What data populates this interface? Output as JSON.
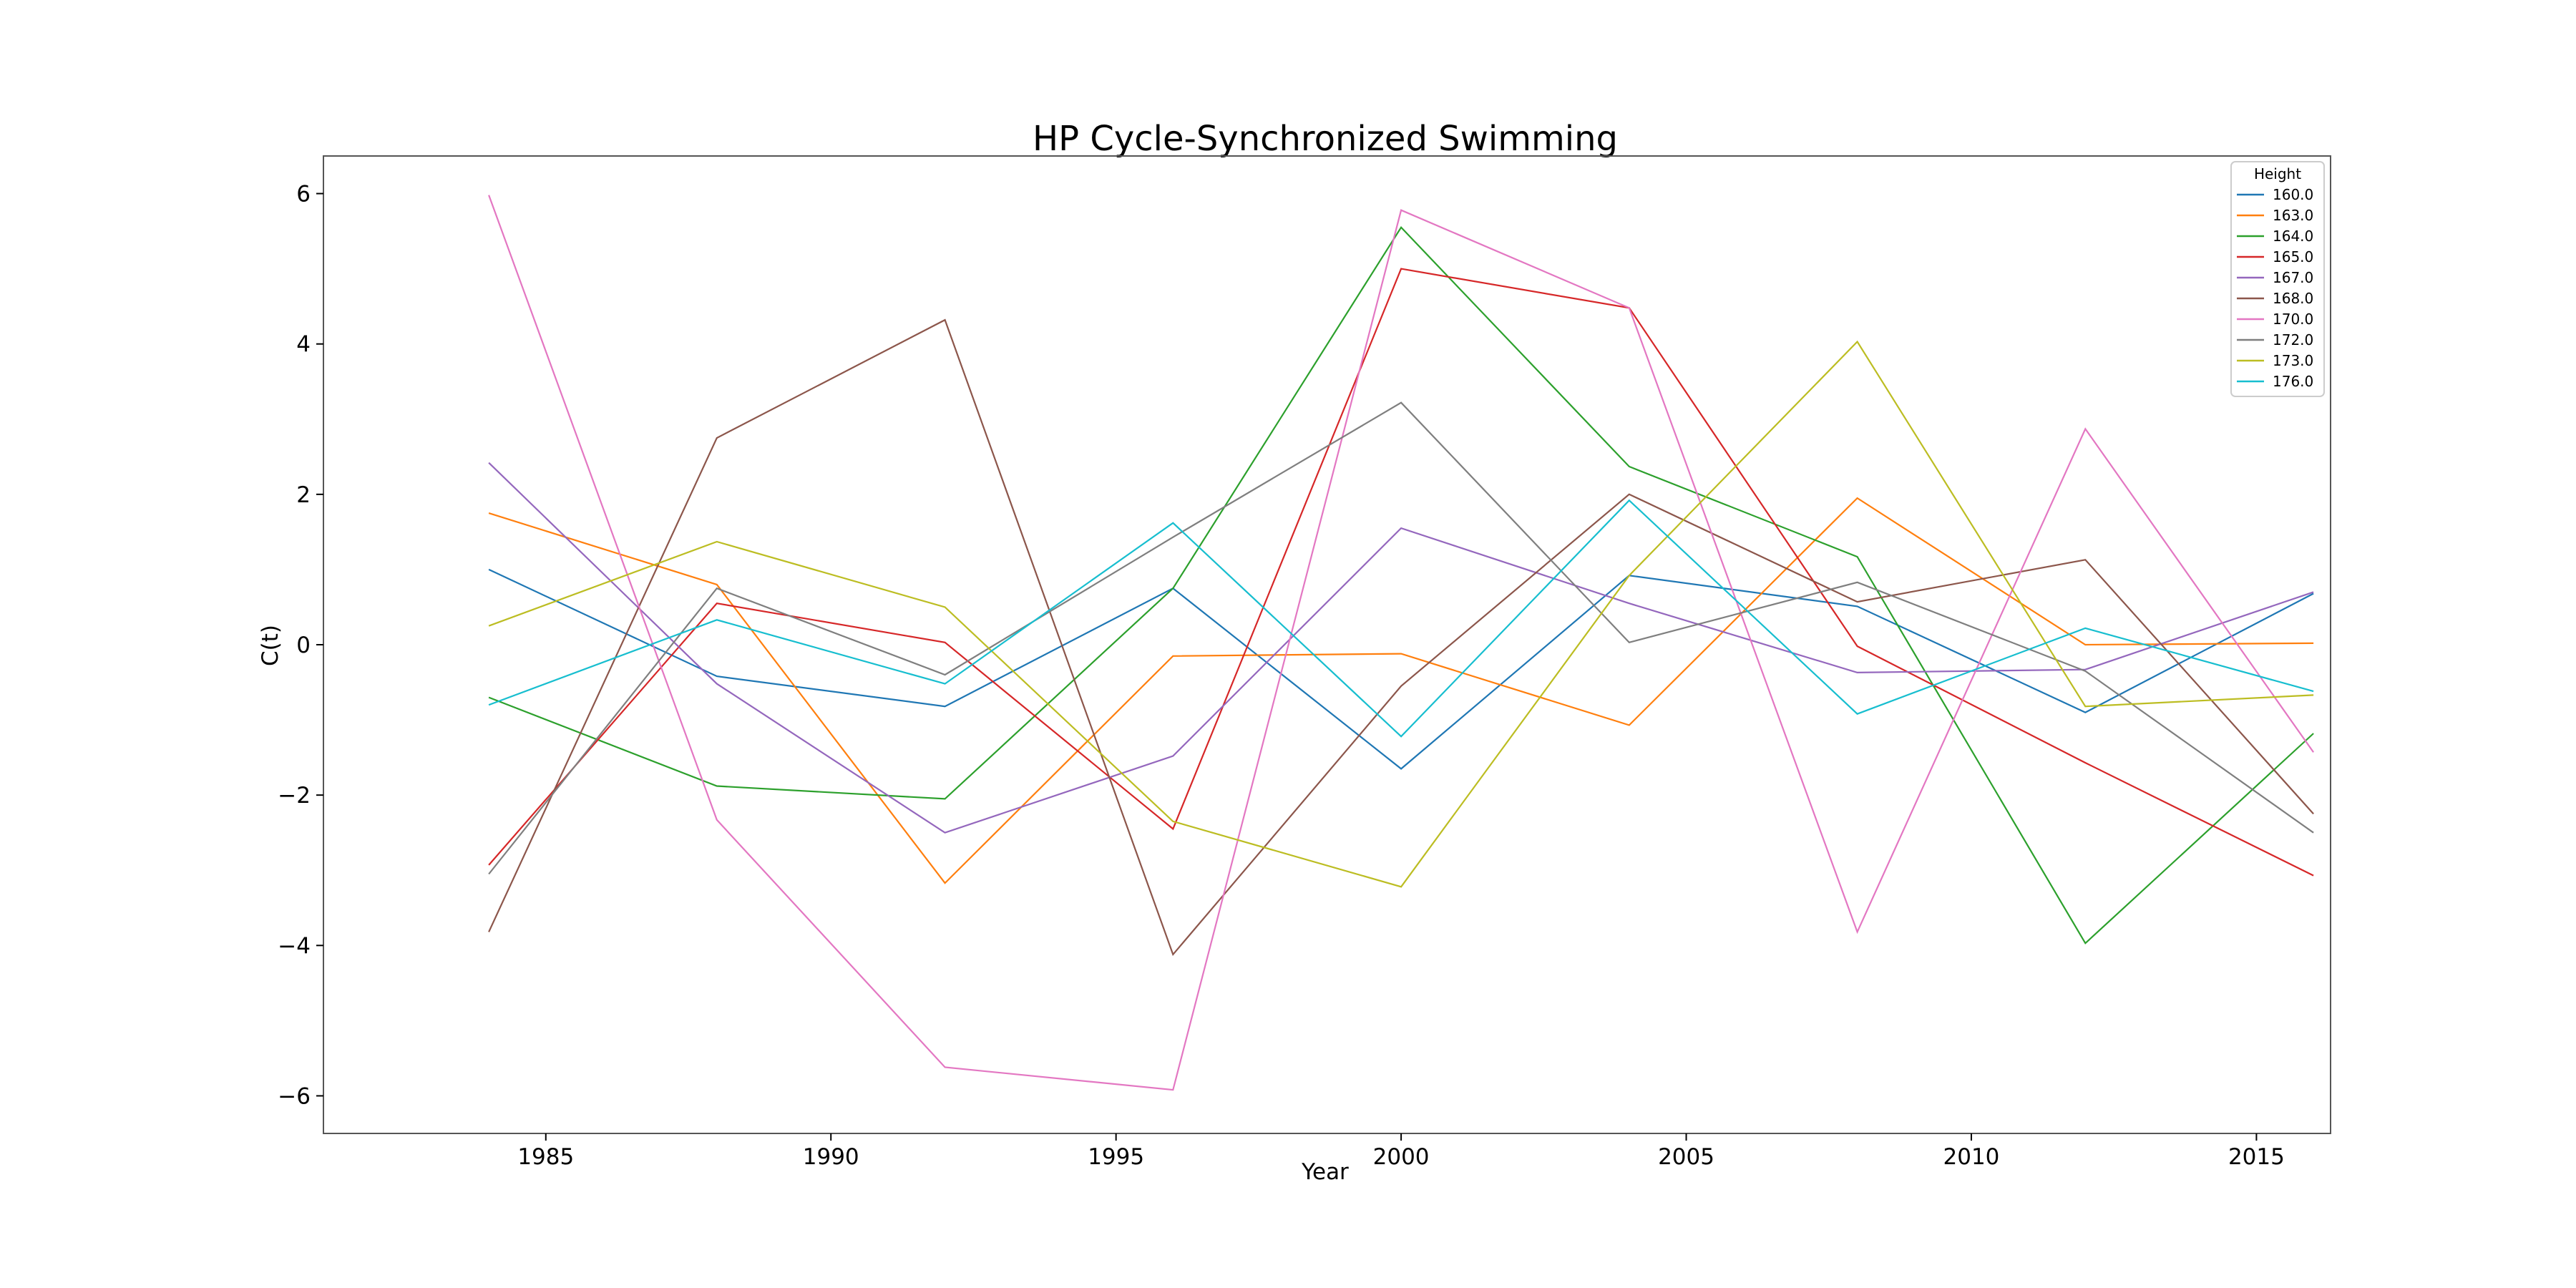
{
  "chart_data": {
    "type": "line",
    "title": "HP Cycle-Synchronized Swimming",
    "xlabel": "Year",
    "ylabel": "C(t)",
    "x": [
      1984,
      1988,
      1992,
      1996,
      2000,
      2004,
      2008,
      2012,
      2016
    ],
    "xlim": [
      1981.1,
      2016.3
    ],
    "ylim": [
      -6.5,
      6.5
    ],
    "xticks": [
      "1985",
      "1990",
      "1995",
      "2000",
      "2005",
      "2010",
      "2015"
    ],
    "yticks": [
      "6",
      "4",
      "2",
      "0",
      "−2",
      "−4",
      "−6"
    ],
    "grid": false,
    "legend": {
      "title": "Height",
      "position": "top-right"
    },
    "series": [
      {
        "name": "160.0",
        "color": "#1f77b4",
        "values": [
          1.0,
          -0.42,
          -0.82,
          0.75,
          -1.65,
          0.92,
          0.51,
          -0.9,
          0.68
        ]
      },
      {
        "name": "163.0",
        "color": "#ff7f0e",
        "values": [
          1.75,
          0.8,
          -3.17,
          -0.15,
          -0.12,
          -1.07,
          1.95,
          0.0,
          0.02
        ]
      },
      {
        "name": "164.0",
        "color": "#2ca02c",
        "values": [
          -0.7,
          -1.88,
          -2.05,
          0.75,
          5.55,
          2.37,
          1.17,
          -3.97,
          -1.18
        ]
      },
      {
        "name": "165.0",
        "color": "#d62728",
        "values": [
          -2.93,
          0.55,
          0.03,
          -2.45,
          5.0,
          4.48,
          -0.02,
          -1.57,
          -3.07
        ]
      },
      {
        "name": "167.0",
        "color": "#9467bd",
        "values": [
          2.42,
          -0.52,
          -2.5,
          -1.48,
          1.55,
          0.55,
          -0.37,
          -0.33,
          0.7
        ]
      },
      {
        "name": "168.0",
        "color": "#8c564b",
        "values": [
          -3.82,
          2.75,
          4.32,
          -4.12,
          -0.55,
          2.0,
          0.57,
          1.13,
          -2.25
        ]
      },
      {
        "name": "170.0",
        "color": "#e377c2",
        "values": [
          5.98,
          -2.33,
          -5.62,
          -5.92,
          5.78,
          4.48,
          -3.82,
          2.87,
          -1.43
        ]
      },
      {
        "name": "172.0",
        "color": "#7f7f7f",
        "values": [
          -3.05,
          0.75,
          -0.4,
          1.43,
          3.22,
          0.03,
          0.83,
          -0.35,
          -2.5
        ]
      },
      {
        "name": "173.0",
        "color": "#bcbd22",
        "values": [
          0.25,
          1.37,
          0.5,
          -2.35,
          -3.22,
          0.92,
          4.03,
          -0.82,
          -0.67
        ]
      },
      {
        "name": "176.0",
        "color": "#17becf",
        "values": [
          -0.8,
          0.33,
          -0.52,
          1.62,
          -1.22,
          1.92,
          -0.92,
          0.22,
          -0.62
        ]
      }
    ]
  }
}
